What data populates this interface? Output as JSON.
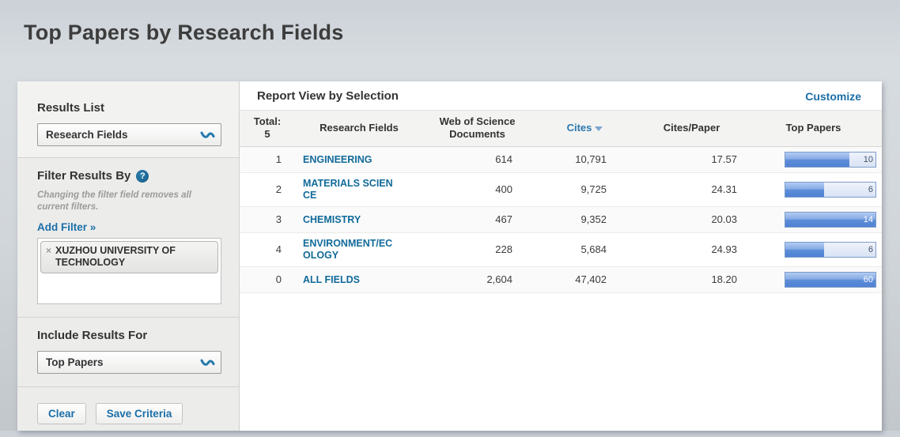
{
  "page": {
    "title": "Top Papers by Research Fields"
  },
  "colors": {
    "accent_blue": "#1b6fa8",
    "field_link_blue": "#116a9a",
    "bar_fill": "#5d8dd8",
    "bar_track": "#dde7f6",
    "page_background": "#d1d6da"
  },
  "sidebar": {
    "results_list": {
      "label": "Results List",
      "selected": "Research Fields"
    },
    "filter": {
      "heading": "Filter Results By",
      "help_icon": "?",
      "note": "Changing the filter field removes all current filters.",
      "add_filter_label": "Add Filter »",
      "chips": [
        {
          "remove_icon": "×",
          "label": "XUZHOU UNIVERSITY OF TECHNOLOGY"
        }
      ]
    },
    "include_results": {
      "label": "Include Results For",
      "selected": "Top Papers"
    },
    "actions": {
      "clear_label": "Clear",
      "save_label": "Save Criteria"
    }
  },
  "report": {
    "heading": "Report View by Selection",
    "customize_label": "Customize",
    "table": {
      "total_label": "Total:",
      "total_value": "5",
      "columns": [
        "Research Fields",
        "Web of Science Documents",
        "Cites",
        "Cites/Paper",
        "Top Papers"
      ],
      "sort_column": "Cites",
      "sort_direction": "desc",
      "rows": [
        {
          "rank": "1",
          "field": "ENGINEERING",
          "wos_docs": "614",
          "cites": "10,791",
          "cites_per_paper": "17.57",
          "top_papers": "10",
          "bar_pct": 71
        },
        {
          "rank": "2",
          "field": "MATERIALS SCIENCE",
          "wos_docs": "400",
          "cites": "9,725",
          "cites_per_paper": "24.31",
          "top_papers": "6",
          "bar_pct": 43
        },
        {
          "rank": "3",
          "field": "CHEMISTRY",
          "wos_docs": "467",
          "cites": "9,352",
          "cites_per_paper": "20.03",
          "top_papers": "14",
          "bar_pct": 100
        },
        {
          "rank": "4",
          "field": "ENVIRONMENT/ECOLOGY",
          "wos_docs": "228",
          "cites": "5,684",
          "cites_per_paper": "24.93",
          "top_papers": "6",
          "bar_pct": 43
        },
        {
          "rank": "0",
          "field": "ALL FIELDS",
          "wos_docs": "2,604",
          "cites": "47,402",
          "cites_per_paper": "18.20",
          "top_papers": "60",
          "bar_pct": 100
        }
      ]
    }
  }
}
